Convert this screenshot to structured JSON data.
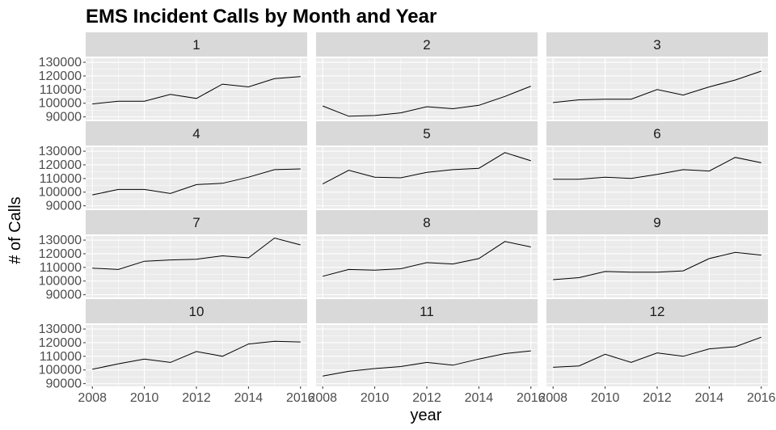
{
  "chart_data": {
    "type": "line",
    "title": "EMS Incident Calls by Month and Year",
    "xlabel": "year",
    "ylabel": "# of Calls",
    "x": [
      2008,
      2009,
      2010,
      2011,
      2012,
      2013,
      2014,
      2015,
      2016
    ],
    "x_ticks": [
      2008,
      2010,
      2012,
      2014,
      2016
    ],
    "y_ticks": [
      90000,
      100000,
      110000,
      120000,
      130000
    ],
    "y_tick_labels": [
      "90000",
      "100000",
      "110000",
      "120000",
      "130000"
    ],
    "x_tick_labels": [
      "2008",
      "2010",
      "2012",
      "2014",
      "2016"
    ],
    "xlim": [
      2008,
      2016
    ],
    "ylim": [
      88000,
      133000
    ],
    "grid": true,
    "facet_by": "month",
    "layout": "4 rows x 3 columns",
    "panels": [
      {
        "facet": "1",
        "values": [
          99500,
          101500,
          101500,
          106500,
          103500,
          114000,
          112000,
          118000,
          119500
        ]
      },
      {
        "facet": "2",
        "values": [
          98000,
          90500,
          91000,
          93000,
          97500,
          96000,
          98500,
          105000,
          112500
        ]
      },
      {
        "facet": "3",
        "values": [
          100500,
          102500,
          103000,
          103000,
          110000,
          106000,
          112000,
          117000,
          123500
        ]
      },
      {
        "facet": "4",
        "values": [
          98000,
          102000,
          102000,
          99000,
          105500,
          106500,
          111000,
          116500,
          117000
        ]
      },
      {
        "facet": "5",
        "values": [
          106000,
          116000,
          111000,
          110500,
          114500,
          116500,
          117500,
          129000,
          123000
        ]
      },
      {
        "facet": "6",
        "values": [
          109500,
          109500,
          111000,
          110000,
          113000,
          116500,
          115500,
          125500,
          121500
        ]
      },
      {
        "facet": "7",
        "values": [
          109500,
          108500,
          114500,
          115500,
          116000,
          118500,
          117000,
          131500,
          126500
        ]
      },
      {
        "facet": "8",
        "values": [
          103500,
          108500,
          108000,
          109000,
          113500,
          112500,
          116500,
          129000,
          125000
        ]
      },
      {
        "facet": "9",
        "values": [
          101000,
          102500,
          107000,
          106500,
          106500,
          107500,
          116500,
          121000,
          119000
        ]
      },
      {
        "facet": "10",
        "values": [
          100500,
          104500,
          108000,
          105500,
          113500,
          110000,
          119000,
          121000,
          120500
        ]
      },
      {
        "facet": "11",
        "values": [
          95500,
          99000,
          101000,
          102500,
          105500,
          103500,
          108000,
          112000,
          114000
        ]
      },
      {
        "facet": "12",
        "values": [
          102000,
          103000,
          111500,
          105500,
          112500,
          110000,
          115500,
          117000,
          124000
        ]
      }
    ]
  }
}
